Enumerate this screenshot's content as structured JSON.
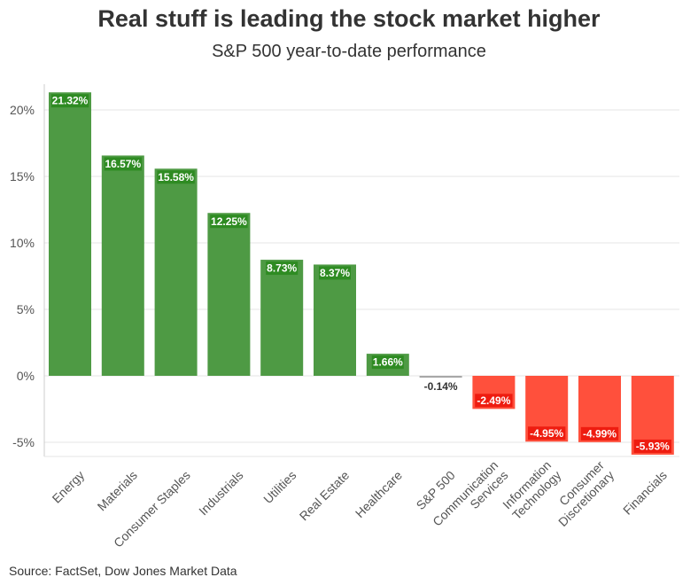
{
  "chart_data": {
    "type": "bar",
    "title": "Real stuff is leading the stock market higher",
    "subtitle": "S&P 500 year-to-date performance",
    "xlabel": "",
    "ylabel": "",
    "ylim": [
      -6.5,
      22.5
    ],
    "yticks": [
      -5,
      0,
      5,
      10,
      15,
      20
    ],
    "ytick_labels": [
      "-5%",
      "0%",
      "5%",
      "10%",
      "15%",
      "20%"
    ],
    "grid": true,
    "categories": [
      [
        "Energy"
      ],
      [
        "Materials"
      ],
      [
        "Consumer Staples"
      ],
      [
        "Industrials"
      ],
      [
        "Utilities"
      ],
      [
        "Real Estate"
      ],
      [
        "Healthcare"
      ],
      [
        "S&P 500"
      ],
      [
        "Communication",
        "Services"
      ],
      [
        "Information",
        "Technology"
      ],
      [
        "Consumer",
        "Discretionary"
      ],
      [
        "Financials"
      ]
    ],
    "values": [
      21.32,
      16.57,
      15.58,
      12.25,
      8.73,
      8.37,
      1.66,
      -0.14,
      -2.49,
      -4.95,
      -4.99,
      -5.93
    ],
    "labels": [
      "21.32%",
      "16.57%",
      "15.58%",
      "12.25%",
      "8.73%",
      "8.37%",
      "1.66%",
      "-0.14%",
      "-2.49%",
      "-4.95%",
      "-4.99%",
      "-5.93%"
    ],
    "colors": {
      "positive": "#4e9a44",
      "negative": "#ff503c",
      "neutral": "#a8a8a8",
      "positive_label_bg": "#2e8b22",
      "negative_label_bg": "#ee1c10"
    },
    "source": "Source: FactSet, Dow Jones Market Data"
  }
}
